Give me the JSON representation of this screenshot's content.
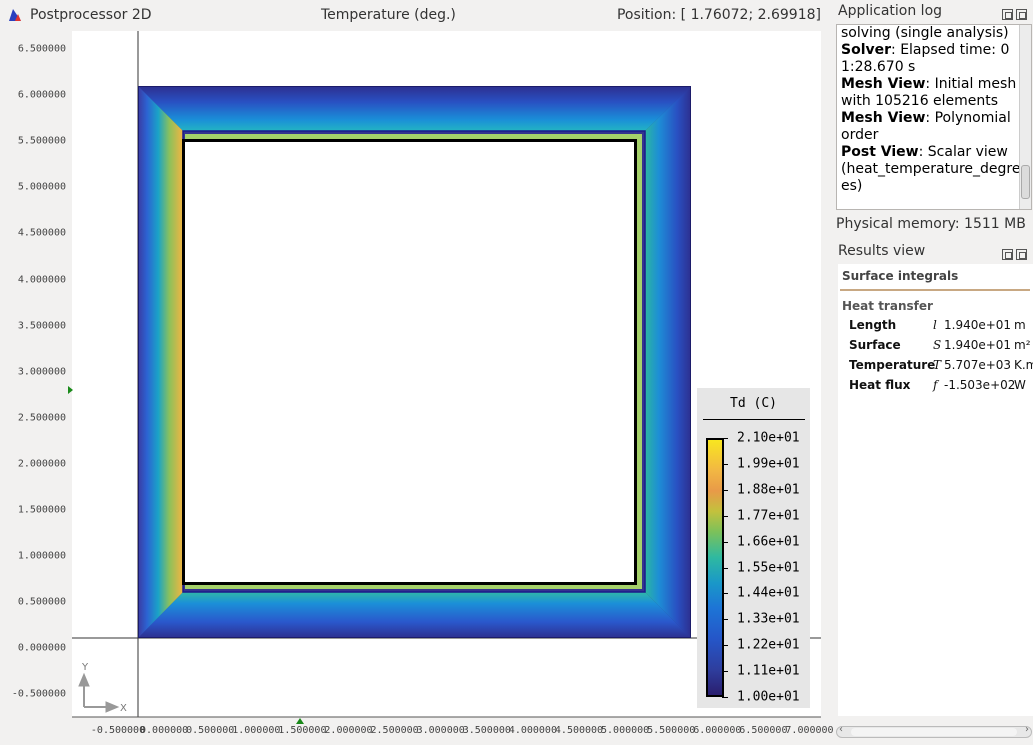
{
  "postprocessor": {
    "title": "Postprocessor 2D",
    "variable": "Temperature (deg.)",
    "position": "Position: [ 1.76072;  2.69918]",
    "icon": "postprocessor-app-icon"
  },
  "plot": {
    "y_ticks": [
      "6.500000",
      "6.000000",
      "5.500000",
      "5.000000",
      "4.500000",
      "4.000000",
      "3.500000",
      "3.000000",
      "2.500000",
      "2.000000",
      "1.500000",
      "1.000000",
      "0.500000",
      "0.000000",
      "-0.500000"
    ],
    "x_ticks": [
      "-0.500000",
      "0.000000",
      "0.500000",
      "1.000000",
      "1.500000",
      "2.000000",
      "2.500000",
      "3.000000",
      "3.500000",
      "4.000000",
      "4.500000",
      "5.000000",
      "5.500000",
      "6.000000",
      "6.500000",
      "7.000000"
    ],
    "axis_y_label": "Y",
    "axis_x_label": "X"
  },
  "legend": {
    "title": "Td (C)",
    "labels": [
      "2.10e+01",
      "1.99e+01",
      "1.88e+01",
      "1.77e+01",
      "1.66e+01",
      "1.55e+01",
      "1.44e+01",
      "1.33e+01",
      "1.22e+01",
      "1.11e+01",
      "1.00e+01"
    ]
  },
  "application_log": {
    "title": "Application log",
    "entries": [
      {
        "bold": "",
        "text": "solving (single analysis)"
      },
      {
        "bold": "Solver",
        "text": ": Elapsed time: 01:28.670 s"
      },
      {
        "bold": "Mesh View",
        "text": ": Initial mesh with 105216 elements"
      },
      {
        "bold": "Mesh View",
        "text": ": Polynomial order"
      },
      {
        "bold": "Post View",
        "text": ": Scalar view (heat_temperature_degrees)"
      }
    ]
  },
  "memory": "Physical memory: 1511 MB",
  "results_view": {
    "title": "Results view",
    "section": "Surface integrals",
    "subsection": "Heat transfer",
    "rows": [
      {
        "name": "Length",
        "symbol": "l",
        "value": "1.940e+01",
        "unit": "m"
      },
      {
        "name": "Surface",
        "symbol": "S",
        "value": "1.940e+01",
        "unit": "m²"
      },
      {
        "name": "Temperature",
        "symbol": "T",
        "value": "5.707e+03",
        "unit": "K.m"
      },
      {
        "name": "Heat flux",
        "symbol": "f",
        "value": "-1.503e+02",
        "unit": "W"
      }
    ]
  }
}
